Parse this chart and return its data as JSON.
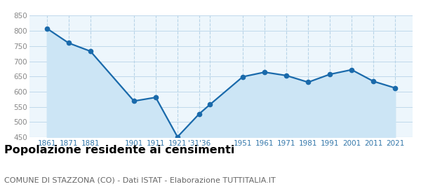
{
  "years": [
    1861,
    1871,
    1881,
    1901,
    1911,
    1921,
    1931,
    1936,
    1951,
    1961,
    1971,
    1981,
    1991,
    2001,
    2011,
    2021
  ],
  "population": [
    808,
    760,
    733,
    569,
    581,
    451,
    527,
    558,
    649,
    664,
    653,
    631,
    657,
    672,
    634,
    612
  ],
  "line_color": "#1a6aab",
  "fill_color": "#cce5f5",
  "marker_color": "#1a6aab",
  "background_color": "#edf6fc",
  "grid_color": "#b8d4e8",
  "ylim": [
    450,
    850
  ],
  "yticks": [
    450,
    500,
    550,
    600,
    650,
    700,
    750,
    800,
    850
  ],
  "xlim_left": 1853,
  "xlim_right": 2029,
  "title": "Popolazione residente ai censimenti",
  "subtitle": "COMUNE DI STAZZONA (CO) - Dati ISTAT - Elaborazione TUTTITALIA.IT",
  "title_fontsize": 11.5,
  "subtitle_fontsize": 8,
  "tick_label_color": "#888888",
  "x_tick_color": "#3377aa"
}
